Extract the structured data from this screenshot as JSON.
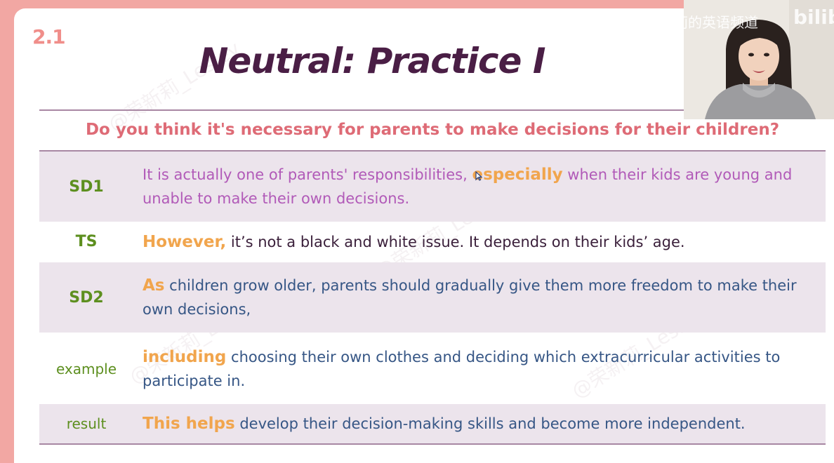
{
  "slide": {
    "number": "2.1",
    "title": "Neutral: Practice I",
    "question": "Do you think it's necessary for parents to make decisions for their children?"
  },
  "rows": [
    {
      "label": "SD1",
      "segments": [
        {
          "text": "It is actually one of parents' responsibilities, ",
          "style": "purple"
        },
        {
          "text": "especially",
          "style": "keyword"
        },
        {
          "text": " when their kids are young and unable to make their own decisions.",
          "style": "purple"
        }
      ]
    },
    {
      "label": "TS",
      "segments": [
        {
          "text": "However,",
          "style": "keyword"
        },
        {
          "text": " it’s not a black and white issue. It depends on their kids’ age.",
          "style": "dark"
        }
      ]
    },
    {
      "label": "SD2",
      "segments": [
        {
          "text": "As",
          "style": "keyword"
        },
        {
          "text": " children grow older, parents should gradually give them more freedom to make their own decisions,",
          "style": "blue"
        }
      ]
    },
    {
      "label": "example",
      "segments": [
        {
          "text": "including",
          "style": "keyword"
        },
        {
          "text": " choosing their own clothes and deciding which extracurricular activities to participate in.",
          "style": "blue"
        }
      ]
    },
    {
      "label": "result",
      "segments": [
        {
          "text": "This helps",
          "style": "keyword"
        },
        {
          "text": " develop their decision-making skills and become more independent.",
          "style": "blue"
        }
      ]
    }
  ],
  "watermark": "@荣新莉_Lesley",
  "overlay": {
    "channel": "荣新莉的英语频道",
    "brand": "bilibili"
  },
  "colors": {
    "background": "#f2a7a3",
    "title": "#4a1e45",
    "question": "#de6b76",
    "label": "#5d8f1f",
    "keyword": "#f1a54d",
    "purple": "#b15ab8",
    "blue": "#365685",
    "shade": "#ece4ec"
  },
  "icons": {
    "cursor": "mouse-pointer-icon",
    "presenter": "webcam-presenter-image"
  }
}
